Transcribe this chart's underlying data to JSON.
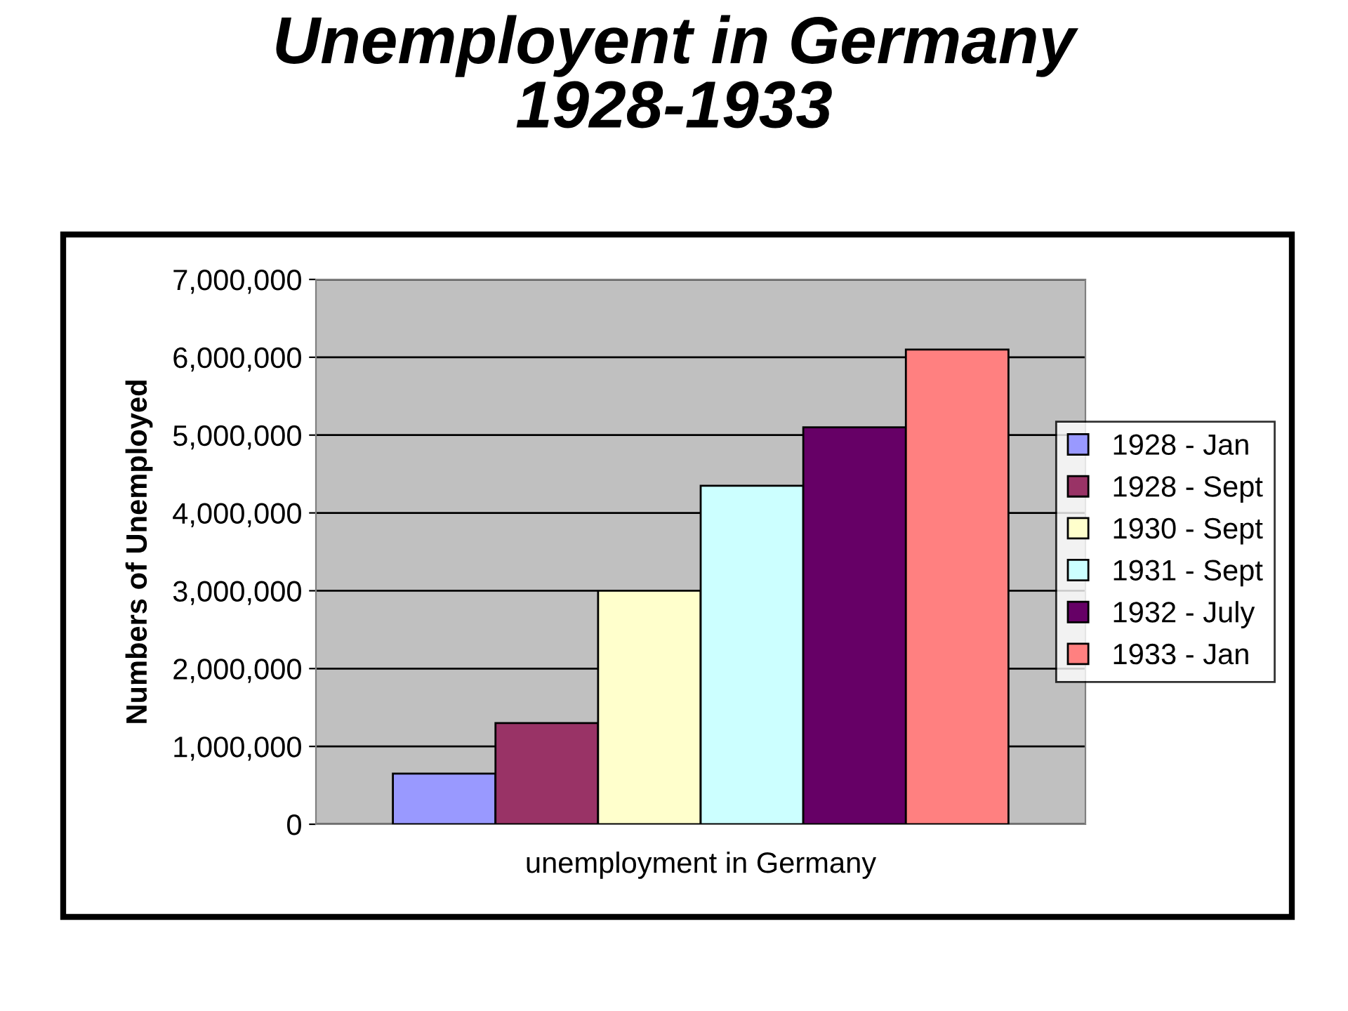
{
  "chart_data": {
    "type": "bar",
    "title": "Unemployent in Germany\n1928-1933",
    "ylabel": "Numbers of Unemployed",
    "categories": [
      "unemployment in Germany"
    ],
    "series": [
      {
        "name": "1928 - Jan",
        "color": "#9999ff",
        "values": [
          650000
        ]
      },
      {
        "name": "1928 - Sept",
        "color": "#993366",
        "values": [
          1300000
        ]
      },
      {
        "name": "1930 - Sept",
        "color": "#ffffcc",
        "values": [
          3000000
        ]
      },
      {
        "name": "1931 - Sept",
        "color": "#ccffff",
        "values": [
          4350000
        ]
      },
      {
        "name": "1932 - July",
        "color": "#660066",
        "values": [
          5100000
        ]
      },
      {
        "name": "1933 - Jan",
        "color": "#ff8080",
        "values": [
          6100000
        ]
      }
    ],
    "ylim": [
      0,
      7000000
    ],
    "yticks": [
      0,
      {
        "value": 1000000,
        "label": "1,000,000"
      },
      {
        "value": 2000000,
        "label": "2,000,000"
      },
      {
        "value": 3000000,
        "label": "3,000,000"
      },
      {
        "value": 4000000,
        "label": "4,000,000"
      },
      {
        "value": 5000000,
        "label": "5,000,000"
      },
      {
        "value": 6000000,
        "label": "6,000,000"
      },
      {
        "value": 7000000,
        "label": "7,000,000"
      }
    ],
    "grid": "y",
    "legend": "right"
  }
}
